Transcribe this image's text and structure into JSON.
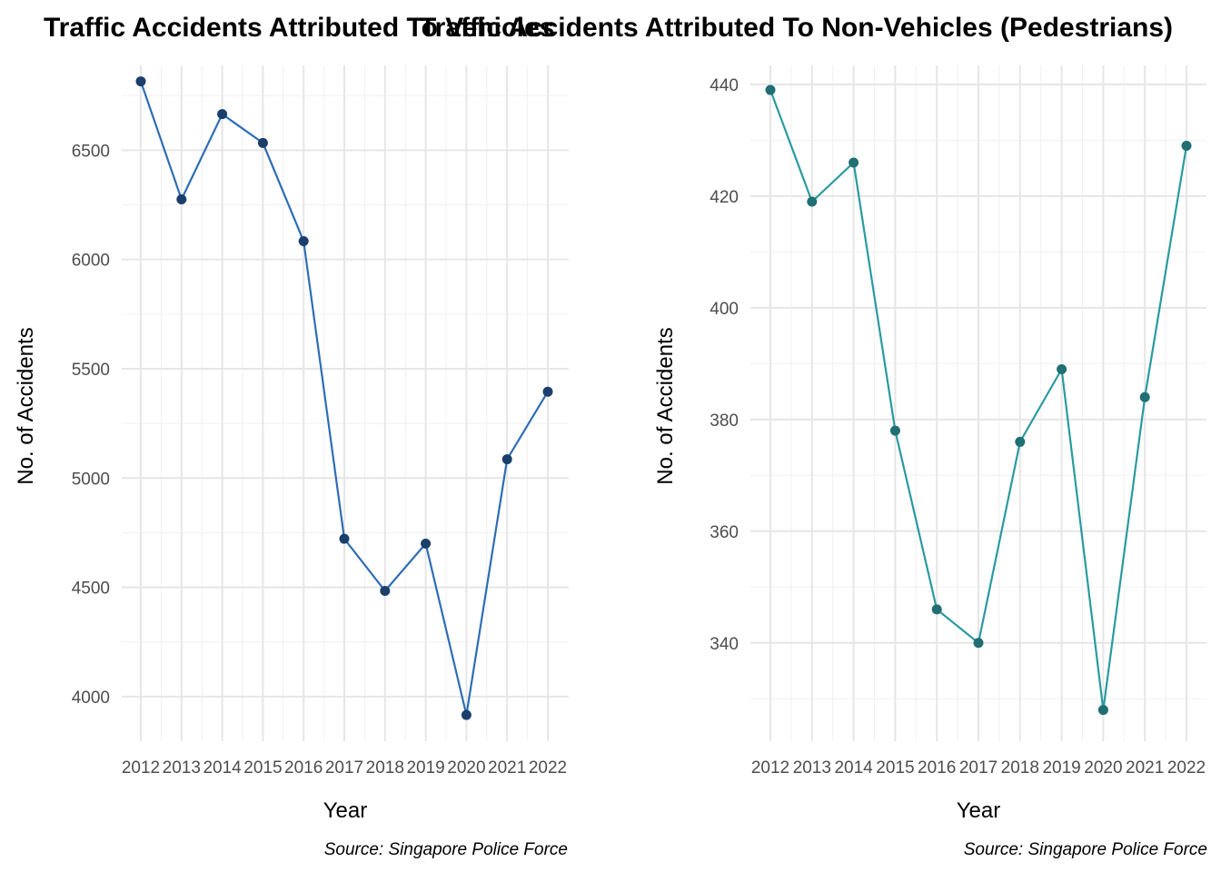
{
  "chart_data": [
    {
      "type": "line",
      "title": "Traffic Accidents Attributed To Vehicles",
      "xlabel": "Year",
      "ylabel": "No. of Accidents",
      "caption": "Source: Singapore Police Force",
      "x": [
        2012,
        2013,
        2014,
        2015,
        2016,
        2017,
        2018,
        2019,
        2020,
        2021,
        2022
      ],
      "values": [
        6815,
        6275,
        6665,
        6533,
        6084,
        4722,
        4484,
        4700,
        3916,
        5086,
        5395
      ],
      "y_ticks": [
        4000,
        4500,
        5000,
        5500,
        6000,
        6500
      ],
      "ylim": [
        3796,
        6888
      ],
      "grid": true,
      "line_color": "#2e6db4",
      "point_color": "#1b3f6b"
    },
    {
      "type": "line",
      "title": "Traffic Accidents Attributed To Non-Vehicles (Pedestrians)",
      "xlabel": "Year",
      "ylabel": "No. of Accidents",
      "caption": "Source: Singapore Police Force",
      "x": [
        2012,
        2013,
        2014,
        2015,
        2016,
        2017,
        2018,
        2019,
        2020,
        2021,
        2022
      ],
      "values": [
        439,
        419,
        426,
        378,
        346,
        340,
        376,
        389,
        328,
        384,
        429
      ],
      "y_ticks": [
        340,
        360,
        380,
        400,
        420,
        440
      ],
      "ylim": [
        322.4,
        443.4
      ],
      "grid": true,
      "line_color": "#2a9aa0",
      "point_color": "#1f6f73"
    }
  ]
}
